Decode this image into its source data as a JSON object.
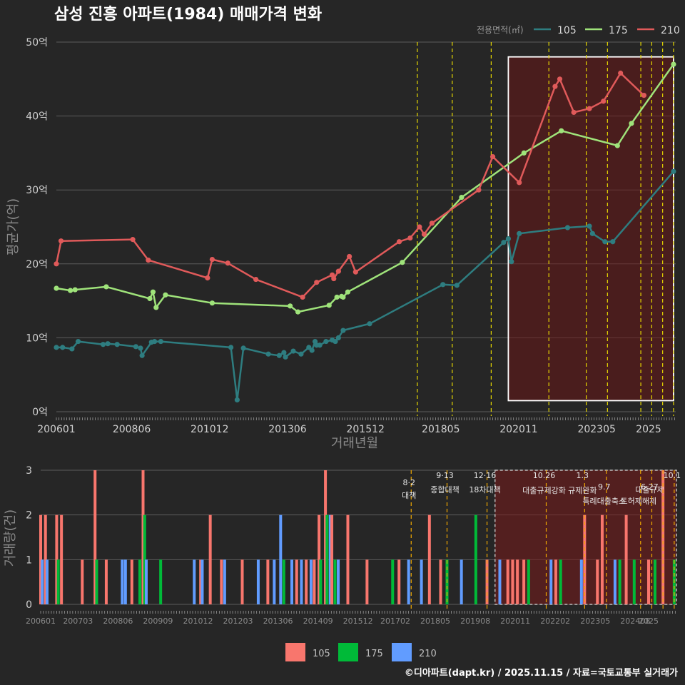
{
  "chart_data": [
    {
      "type": "line",
      "title": "삼성 진흥 아파트(1984) 매매가격 변화",
      "xlabel": "거래년월",
      "ylabel": "평균가(억)",
      "ylim": [
        0,
        50
      ],
      "yticks": [
        0,
        10,
        20,
        30,
        40,
        50
      ],
      "ytick_labels": [
        "0억",
        "10억",
        "20억",
        "30억",
        "40억",
        "50억"
      ],
      "xticks": [
        "200601",
        "200806",
        "201012",
        "201306",
        "201512",
        "201805",
        "202011",
        "202305",
        "2025"
      ],
      "x_range": [
        2006.0,
        2025.87
      ],
      "legend_title": "전용면적(㎡)",
      "legend_position": "top-right",
      "highlight_region": {
        "x_start": 2020.5,
        "x_end": 2025.8,
        "y_start": 1.5,
        "y_end": 48
      },
      "policy_lines": [
        2017.58,
        2018.7,
        2019.95,
        2021.8,
        2023.0,
        2023.68,
        2024.75,
        2025.1,
        2025.45,
        2025.8
      ],
      "series": [
        {
          "name": "105",
          "color": "#2e7d80",
          "points": [
            [
              2006.0,
              8.7
            ],
            [
              2006.2,
              8.7
            ],
            [
              2006.5,
              8.5
            ],
            [
              2006.7,
              9.5
            ],
            [
              2007.5,
              9.1
            ],
            [
              2007.65,
              9.2
            ],
            [
              2007.95,
              9.1
            ],
            [
              2008.55,
              8.8
            ],
            [
              2008.7,
              8.6
            ],
            [
              2008.75,
              7.6
            ],
            [
              2009.05,
              9.4
            ],
            [
              2009.15,
              9.5
            ],
            [
              2009.35,
              9.5
            ],
            [
              2011.6,
              8.7
            ],
            [
              2011.8,
              1.6
            ],
            [
              2012.0,
              8.6
            ],
            [
              2012.8,
              7.8
            ],
            [
              2013.15,
              7.6
            ],
            [
              2013.3,
              8.0
            ],
            [
              2013.35,
              7.4
            ],
            [
              2013.6,
              8.2
            ],
            [
              2013.85,
              7.8
            ],
            [
              2014.1,
              8.7
            ],
            [
              2014.2,
              8.3
            ],
            [
              2014.3,
              9.5
            ],
            [
              2014.35,
              9.0
            ],
            [
              2014.45,
              9.0
            ],
            [
              2014.65,
              9.5
            ],
            [
              2014.85,
              9.7
            ],
            [
              2014.95,
              9.5
            ],
            [
              2015.05,
              10.0
            ],
            [
              2015.2,
              11.0
            ],
            [
              2016.05,
              11.9
            ],
            [
              2018.4,
              17.2
            ],
            [
              2018.85,
              17.1
            ],
            [
              2020.35,
              22.9
            ],
            [
              2020.5,
              23.4
            ],
            [
              2020.6,
              20.3
            ],
            [
              2020.85,
              24.1
            ],
            [
              2022.4,
              24.9
            ],
            [
              2023.1,
              25.1
            ],
            [
              2023.2,
              24.1
            ],
            [
              2023.6,
              23.0
            ],
            [
              2023.85,
              23.0
            ],
            [
              2025.8,
              32.5
            ]
          ]
        },
        {
          "name": "175",
          "color": "#9fe37a",
          "points": [
            [
              2006.0,
              16.7
            ],
            [
              2006.45,
              16.4
            ],
            [
              2006.6,
              16.5
            ],
            [
              2007.6,
              16.9
            ],
            [
              2009.0,
              15.3
            ],
            [
              2009.1,
              16.2
            ],
            [
              2009.2,
              14.1
            ],
            [
              2009.5,
              15.8
            ],
            [
              2011.0,
              14.7
            ],
            [
              2013.5,
              14.3
            ],
            [
              2013.75,
              13.5
            ],
            [
              2014.75,
              14.4
            ],
            [
              2015.0,
              15.5
            ],
            [
              2015.15,
              15.6
            ],
            [
              2015.2,
              15.5
            ],
            [
              2015.35,
              16.2
            ],
            [
              2017.1,
              20.2
            ],
            [
              2019.0,
              29.0
            ],
            [
              2021.0,
              35.0
            ],
            [
              2022.2,
              38.0
            ],
            [
              2024.0,
              36.0
            ],
            [
              2024.45,
              39.0
            ],
            [
              2025.8,
              47.0
            ]
          ]
        },
        {
          "name": "210",
          "color": "#e05a5a",
          "points": [
            [
              2006.0,
              20.0
            ],
            [
              2006.15,
              23.1
            ],
            [
              2008.45,
              23.3
            ],
            [
              2008.95,
              20.5
            ],
            [
              2010.85,
              18.1
            ],
            [
              2011.0,
              20.6
            ],
            [
              2011.5,
              20.1
            ],
            [
              2012.4,
              17.9
            ],
            [
              2013.9,
              15.5
            ],
            [
              2014.35,
              17.5
            ],
            [
              2014.85,
              18.5
            ],
            [
              2014.9,
              18.0
            ],
            [
              2015.05,
              19.0
            ],
            [
              2015.4,
              21.0
            ],
            [
              2015.6,
              18.9
            ],
            [
              2017.0,
              23.0
            ],
            [
              2017.35,
              23.5
            ],
            [
              2017.65,
              25.0
            ],
            [
              2017.8,
              24.0
            ],
            [
              2018.05,
              25.5
            ],
            [
              2019.55,
              30.0
            ],
            [
              2020.0,
              34.5
            ],
            [
              2020.85,
              31.0
            ],
            [
              2022.0,
              44.0
            ],
            [
              2022.15,
              45.0
            ],
            [
              2022.6,
              40.5
            ],
            [
              2023.1,
              41.0
            ],
            [
              2023.55,
              42.0
            ],
            [
              2024.1,
              45.8
            ],
            [
              2024.85,
              42.8
            ]
          ]
        }
      ]
    },
    {
      "type": "bar",
      "ylabel": "거래량(건)",
      "ylim": [
        0,
        3
      ],
      "yticks": [
        0,
        1,
        2,
        3
      ],
      "xticks": [
        "200601",
        "200703",
        "200806",
        "200909",
        "201012",
        "201203",
        "201306",
        "201409",
        "201512",
        "201702",
        "201805",
        "201908",
        "202011",
        "202202",
        "202305",
        "202408",
        "2025"
      ],
      "x_range": [
        2006.0,
        2025.87
      ],
      "highlight_region": {
        "x_start": 2020.2,
        "x_end": 2025.87
      },
      "legend_position": "bottom",
      "colors": {
        "105": "#f8766d",
        "175": "#00ba38",
        "210": "#619cff"
      },
      "policies": [
        {
          "x": 2017.58,
          "date": "8·2",
          "name": "대책"
        },
        {
          "x": 2018.7,
          "date": "9·13",
          "name": "종합대책"
        },
        {
          "x": 2019.95,
          "date": "12·16",
          "name": "18차대책"
        },
        {
          "x": 2021.8,
          "date": "10.26",
          "name": "대출규제강화"
        },
        {
          "x": 2023.0,
          "date": "1.3",
          "name": "규제완화"
        },
        {
          "x": 2023.68,
          "date": "9.7",
          "name": "특례대출축소"
        },
        {
          "x": 2024.75,
          "date": "",
          "name": "토허제해제"
        },
        {
          "x": 2025.1,
          "date": "6.27",
          "name": "대출규제"
        },
        {
          "x": 2025.45,
          "date": "",
          "name": ""
        },
        {
          "x": 2025.8,
          "date": "10.1",
          "name": ""
        }
      ],
      "bars": [
        {
          "x": 2006.0,
          "series": "105",
          "count": 2
        },
        {
          "x": 2006.05,
          "series": "210",
          "count": 1
        },
        {
          "x": 2006.15,
          "series": "105",
          "count": 2
        },
        {
          "x": 2006.2,
          "series": "210",
          "count": 1
        },
        {
          "x": 2006.5,
          "series": "105",
          "count": 2
        },
        {
          "x": 2006.55,
          "series": "175",
          "count": 1
        },
        {
          "x": 2006.65,
          "series": "105",
          "count": 2
        },
        {
          "x": 2007.3,
          "series": "105",
          "count": 1
        },
        {
          "x": 2007.7,
          "series": "105",
          "count": 3
        },
        {
          "x": 2007.75,
          "series": "175",
          "count": 1
        },
        {
          "x": 2008.05,
          "series": "105",
          "count": 1
        },
        {
          "x": 2008.55,
          "series": "210",
          "count": 1
        },
        {
          "x": 2008.65,
          "series": "210",
          "count": 1
        },
        {
          "x": 2008.85,
          "series": "105",
          "count": 1
        },
        {
          "x": 2009.1,
          "series": "175",
          "count": 1
        },
        {
          "x": 2009.2,
          "series": "105",
          "count": 3
        },
        {
          "x": 2009.25,
          "series": "175",
          "count": 2
        },
        {
          "x": 2009.3,
          "series": "210",
          "count": 1
        },
        {
          "x": 2009.75,
          "series": "175",
          "count": 1
        },
        {
          "x": 2010.8,
          "series": "210",
          "count": 1
        },
        {
          "x": 2011.0,
          "series": "105",
          "count": 1
        },
        {
          "x": 2011.05,
          "series": "210",
          "count": 1
        },
        {
          "x": 2011.3,
          "series": "105",
          "count": 2
        },
        {
          "x": 2011.65,
          "series": "105",
          "count": 1
        },
        {
          "x": 2011.75,
          "series": "210",
          "count": 1
        },
        {
          "x": 2012.3,
          "series": "105",
          "count": 1
        },
        {
          "x": 2012.8,
          "series": "210",
          "count": 1
        },
        {
          "x": 2013.1,
          "series": "105",
          "count": 1
        },
        {
          "x": 2013.3,
          "series": "210",
          "count": 1
        },
        {
          "x": 2013.5,
          "series": "210",
          "count": 2
        },
        {
          "x": 2013.6,
          "series": "175",
          "count": 1
        },
        {
          "x": 2013.85,
          "series": "210",
          "count": 1
        },
        {
          "x": 2014.0,
          "series": "105",
          "count": 1
        },
        {
          "x": 2014.15,
          "series": "210",
          "count": 1
        },
        {
          "x": 2014.3,
          "series": "105",
          "count": 1
        },
        {
          "x": 2014.45,
          "series": "210",
          "count": 1
        },
        {
          "x": 2014.55,
          "series": "105",
          "count": 1
        },
        {
          "x": 2014.7,
          "series": "105",
          "count": 2
        },
        {
          "x": 2014.75,
          "series": "175",
          "count": 1
        },
        {
          "x": 2014.9,
          "series": "105",
          "count": 3
        },
        {
          "x": 2014.95,
          "series": "175",
          "count": 2
        },
        {
          "x": 2015.05,
          "series": "210",
          "count": 2
        },
        {
          "x": 2015.1,
          "series": "105",
          "count": 2
        },
        {
          "x": 2015.2,
          "series": "175",
          "count": 1
        },
        {
          "x": 2015.3,
          "series": "210",
          "count": 1
        },
        {
          "x": 2015.6,
          "series": "105",
          "count": 2
        },
        {
          "x": 2016.2,
          "series": "105",
          "count": 1
        },
        {
          "x": 2017.0,
          "series": "175",
          "count": 1
        },
        {
          "x": 2017.2,
          "series": "105",
          "count": 1
        },
        {
          "x": 2017.5,
          "series": "210",
          "count": 1
        },
        {
          "x": 2017.9,
          "series": "210",
          "count": 1
        },
        {
          "x": 2018.15,
          "series": "105",
          "count": 2
        },
        {
          "x": 2018.5,
          "series": "105",
          "count": 1
        },
        {
          "x": 2018.7,
          "series": "175",
          "count": 1
        },
        {
          "x": 2019.15,
          "series": "210",
          "count": 1
        },
        {
          "x": 2019.6,
          "series": "175",
          "count": 2
        },
        {
          "x": 2019.95,
          "series": "105",
          "count": 1
        },
        {
          "x": 2020.35,
          "series": "210",
          "count": 1
        },
        {
          "x": 2020.6,
          "series": "105",
          "count": 1
        },
        {
          "x": 2020.75,
          "series": "105",
          "count": 1
        },
        {
          "x": 2020.9,
          "series": "105",
          "count": 1
        },
        {
          "x": 2021.1,
          "series": "105",
          "count": 1
        },
        {
          "x": 2021.25,
          "series": "175",
          "count": 1
        },
        {
          "x": 2021.95,
          "series": "210",
          "count": 1
        },
        {
          "x": 2022.1,
          "series": "105",
          "count": 1
        },
        {
          "x": 2022.25,
          "series": "175",
          "count": 1
        },
        {
          "x": 2022.9,
          "series": "210",
          "count": 1
        },
        {
          "x": 2023.0,
          "series": "105",
          "count": 2
        },
        {
          "x": 2023.4,
          "series": "105",
          "count": 1
        },
        {
          "x": 2023.55,
          "series": "105",
          "count": 2
        },
        {
          "x": 2023.95,
          "series": "210",
          "count": 1
        },
        {
          "x": 2024.1,
          "series": "175",
          "count": 1
        },
        {
          "x": 2024.3,
          "series": "105",
          "count": 2
        },
        {
          "x": 2024.55,
          "series": "175",
          "count": 1
        },
        {
          "x": 2025.0,
          "series": "105",
          "count": 1
        },
        {
          "x": 2025.2,
          "series": "175",
          "count": 1
        },
        {
          "x": 2025.45,
          "series": "105",
          "count": 3
        },
        {
          "x": 2025.8,
          "series": "175",
          "count": 1
        }
      ]
    }
  ],
  "legend": {
    "title": "전용면적(㎡)",
    "items": [
      {
        "label": "105",
        "line_color": "#2e7d80",
        "fill_color": "#f8766d"
      },
      {
        "label": "175",
        "line_color": "#9fe37a",
        "fill_color": "#00ba38"
      },
      {
        "label": "210",
        "line_color": "#e05a5a",
        "fill_color": "#619cff"
      }
    ]
  },
  "footer": {
    "credit": "©디아파트(dapt.kr) / 2025.11.15 / 자료=국토교통부 실거래가"
  }
}
